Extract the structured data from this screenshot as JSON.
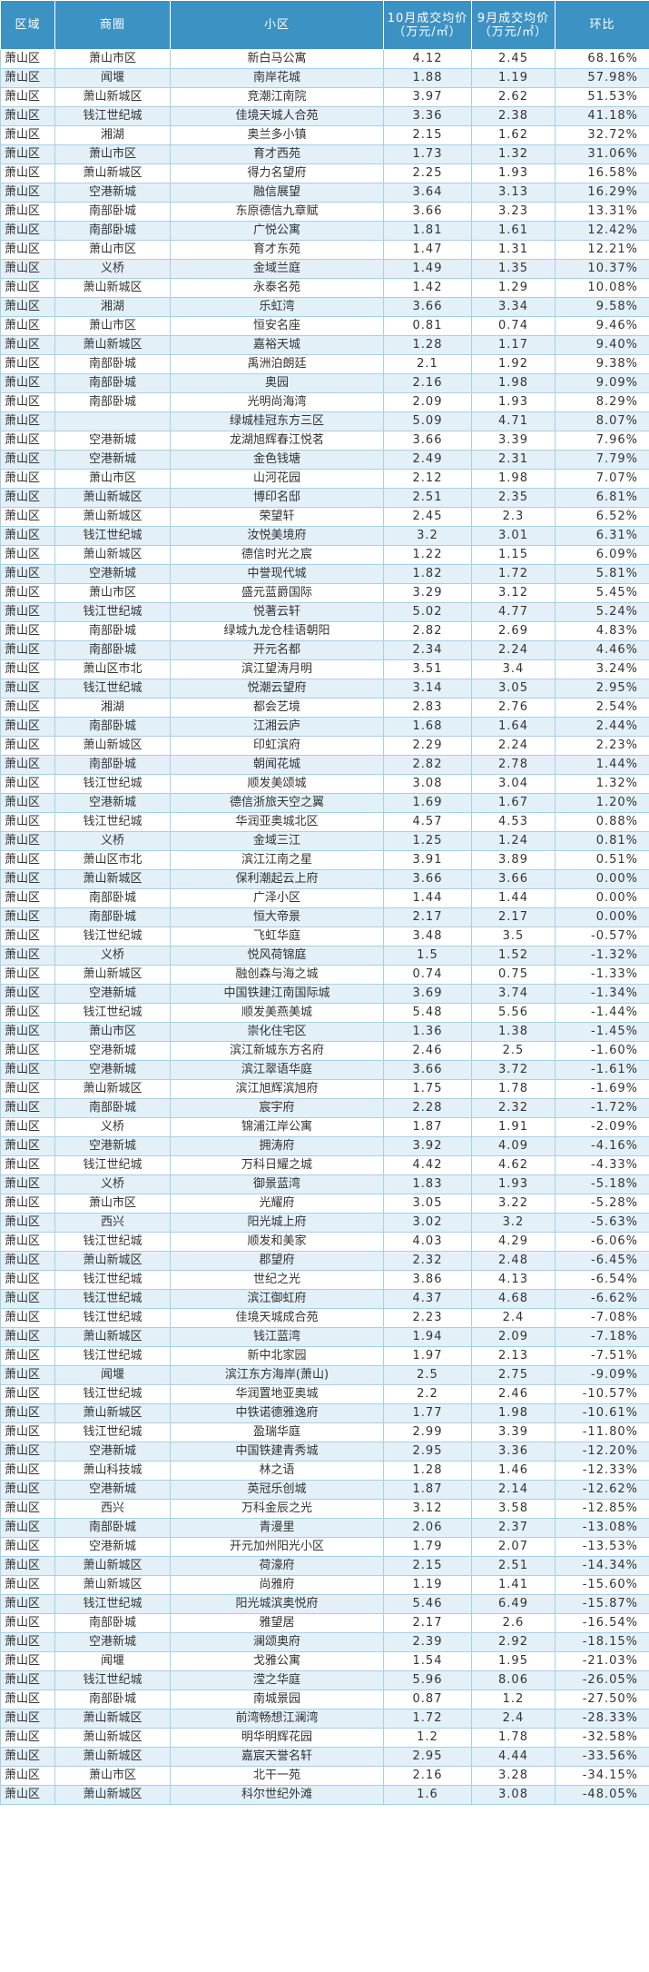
{
  "table": {
    "headers": [
      "区域",
      "商圈",
      "小区",
      "10月成交均价（万元/㎡）",
      "9月成交均价（万元/㎡）",
      "环比"
    ],
    "rows": [
      [
        "萧山区",
        "萧山市区",
        "新白马公寓",
        "4.12",
        "2.45",
        "68.16%"
      ],
      [
        "萧山区",
        "闻堰",
        "南岸花城",
        "1.88",
        "1.19",
        "57.98%"
      ],
      [
        "萧山区",
        "萧山新城区",
        "竞潮江南院",
        "3.97",
        "2.62",
        "51.53%"
      ],
      [
        "萧山区",
        "钱江世纪城",
        "佳境天城人合苑",
        "3.36",
        "2.38",
        "41.18%"
      ],
      [
        "萧山区",
        "湘湖",
        "奥兰多小镇",
        "2.15",
        "1.62",
        "32.72%"
      ],
      [
        "萧山区",
        "萧山市区",
        "育才西苑",
        "1.73",
        "1.32",
        "31.06%"
      ],
      [
        "萧山区",
        "萧山新城区",
        "得力名望府",
        "2.25",
        "1.93",
        "16.58%"
      ],
      [
        "萧山区",
        "空港新城",
        "融信展望",
        "3.64",
        "3.13",
        "16.29%"
      ],
      [
        "萧山区",
        "南部卧城",
        "东原德信九章赋",
        "3.66",
        "3.23",
        "13.31%"
      ],
      [
        "萧山区",
        "南部卧城",
        "广悦公寓",
        "1.81",
        "1.61",
        "12.42%"
      ],
      [
        "萧山区",
        "萧山市区",
        "育才东苑",
        "1.47",
        "1.31",
        "12.21%"
      ],
      [
        "萧山区",
        "义桥",
        "金域兰庭",
        "1.49",
        "1.35",
        "10.37%"
      ],
      [
        "萧山区",
        "萧山新城区",
        "永泰名苑",
        "1.42",
        "1.29",
        "10.08%"
      ],
      [
        "萧山区",
        "湘湖",
        "乐虹湾",
        "3.66",
        "3.34",
        "9.58%"
      ],
      [
        "萧山区",
        "萧山市区",
        "恒安名座",
        "0.81",
        "0.74",
        "9.46%"
      ],
      [
        "萧山区",
        "萧山新城区",
        "嘉裕天城",
        "1.28",
        "1.17",
        "9.40%"
      ],
      [
        "萧山区",
        "南部卧城",
        "禹洲泊朗廷",
        "2.1",
        "1.92",
        "9.38%"
      ],
      [
        "萧山区",
        "南部卧城",
        "奥园",
        "2.16",
        "1.98",
        "9.09%"
      ],
      [
        "萧山区",
        "南部卧城",
        "光明尚海湾",
        "2.09",
        "1.93",
        "8.29%"
      ],
      [
        "萧山区",
        "",
        "绿城桂冠东方三区",
        "5.09",
        "4.71",
        "8.07%"
      ],
      [
        "萧山区",
        "空港新城",
        "龙湖旭辉春江悦茗",
        "3.66",
        "3.39",
        "7.96%"
      ],
      [
        "萧山区",
        "空港新城",
        "金色钱塘",
        "2.49",
        "2.31",
        "7.79%"
      ],
      [
        "萧山区",
        "萧山市区",
        "山河花园",
        "2.12",
        "1.98",
        "7.07%"
      ],
      [
        "萧山区",
        "萧山新城区",
        "博印名邸",
        "2.51",
        "2.35",
        "6.81%"
      ],
      [
        "萧山区",
        "萧山新城区",
        "荣望轩",
        "2.45",
        "2.3",
        "6.52%"
      ],
      [
        "萧山区",
        "钱江世纪城",
        "汝悦美境府",
        "3.2",
        "3.01",
        "6.31%"
      ],
      [
        "萧山区",
        "萧山新城区",
        "德信时光之宸",
        "1.22",
        "1.15",
        "6.09%"
      ],
      [
        "萧山区",
        "空港新城",
        "中誉现代城",
        "1.82",
        "1.72",
        "5.81%"
      ],
      [
        "萧山区",
        "萧山市区",
        "盛元蓝爵国际",
        "3.29",
        "3.12",
        "5.45%"
      ],
      [
        "萧山区",
        "钱江世纪城",
        "悦著云轩",
        "5.02",
        "4.77",
        "5.24%"
      ],
      [
        "萧山区",
        "南部卧城",
        "绿城九龙仓桂语朝阳",
        "2.82",
        "2.69",
        "4.83%"
      ],
      [
        "萧山区",
        "南部卧城",
        "开元名都",
        "2.34",
        "2.24",
        "4.46%"
      ],
      [
        "萧山区",
        "萧山区市北",
        "滨江望涛月明",
        "3.51",
        "3.4",
        "3.24%"
      ],
      [
        "萧山区",
        "钱江世纪城",
        "悦潮云望府",
        "3.14",
        "3.05",
        "2.95%"
      ],
      [
        "萧山区",
        "湘湖",
        "都会艺境",
        "2.83",
        "2.76",
        "2.54%"
      ],
      [
        "萧山区",
        "南部卧城",
        "江湘云庐",
        "1.68",
        "1.64",
        "2.44%"
      ],
      [
        "萧山区",
        "萧山新城区",
        "印虹滨府",
        "2.29",
        "2.24",
        "2.23%"
      ],
      [
        "萧山区",
        "南部卧城",
        "朝闻花城",
        "2.82",
        "2.78",
        "1.44%"
      ],
      [
        "萧山区",
        "钱江世纪城",
        "顺发美颂城",
        "3.08",
        "3.04",
        "1.32%"
      ],
      [
        "萧山区",
        "空港新城",
        "德信浙旅天空之翼",
        "1.69",
        "1.67",
        "1.20%"
      ],
      [
        "萧山区",
        "钱江世纪城",
        "华润亚奥城北区",
        "4.57",
        "4.53",
        "0.88%"
      ],
      [
        "萧山区",
        "义桥",
        "金域三江",
        "1.25",
        "1.24",
        "0.81%"
      ],
      [
        "萧山区",
        "萧山区市北",
        "滨江江南之星",
        "3.91",
        "3.89",
        "0.51%"
      ],
      [
        "萧山区",
        "萧山新城区",
        "保利潮起云上府",
        "3.66",
        "3.66",
        "0.00%"
      ],
      [
        "萧山区",
        "南部卧城",
        "广泽小区",
        "1.44",
        "1.44",
        "0.00%"
      ],
      [
        "萧山区",
        "南部卧城",
        "恒大帝景",
        "2.17",
        "2.17",
        "0.00%"
      ],
      [
        "萧山区",
        "钱江世纪城",
        "飞虹华庭",
        "3.48",
        "3.5",
        "-0.57%"
      ],
      [
        "萧山区",
        "义桥",
        "悦风荷锦庭",
        "1.5",
        "1.52",
        "-1.32%"
      ],
      [
        "萧山区",
        "萧山新城区",
        "融创森与海之城",
        "0.74",
        "0.75",
        "-1.33%"
      ],
      [
        "萧山区",
        "空港新城",
        "中国铁建江南国际城",
        "3.69",
        "3.74",
        "-1.34%"
      ],
      [
        "萧山区",
        "钱江世纪城",
        "顺发美燕美城",
        "5.48",
        "5.56",
        "-1.44%"
      ],
      [
        "萧山区",
        "萧山市区",
        "崇化住宅区",
        "1.36",
        "1.38",
        "-1.45%"
      ],
      [
        "萧山区",
        "空港新城",
        "滨江新城东方名府",
        "2.46",
        "2.5",
        "-1.60%"
      ],
      [
        "萧山区",
        "空港新城",
        "滨江翠语华庭",
        "3.66",
        "3.72",
        "-1.61%"
      ],
      [
        "萧山区",
        "萧山新城区",
        "滨江旭辉滨旭府",
        "1.75",
        "1.78",
        "-1.69%"
      ],
      [
        "萧山区",
        "南部卧城",
        "宸宇府",
        "2.28",
        "2.32",
        "-1.72%"
      ],
      [
        "萧山区",
        "义桥",
        "锦浦江岸公寓",
        "1.87",
        "1.91",
        "-2.09%"
      ],
      [
        "萧山区",
        "空港新城",
        "拥涛府",
        "3.92",
        "4.09",
        "-4.16%"
      ],
      [
        "萧山区",
        "钱江世纪城",
        "万科日耀之城",
        "4.42",
        "4.62",
        "-4.33%"
      ],
      [
        "萧山区",
        "义桥",
        "御景蓝湾",
        "1.83",
        "1.93",
        "-5.18%"
      ],
      [
        "萧山区",
        "萧山市区",
        "光耀府",
        "3.05",
        "3.22",
        "-5.28%"
      ],
      [
        "萧山区",
        "西兴",
        "阳光城上府",
        "3.02",
        "3.2",
        "-5.63%"
      ],
      [
        "萧山区",
        "钱江世纪城",
        "顺发和美家",
        "4.03",
        "4.29",
        "-6.06%"
      ],
      [
        "萧山区",
        "萧山新城区",
        "郡望府",
        "2.32",
        "2.48",
        "-6.45%"
      ],
      [
        "萧山区",
        "钱江世纪城",
        "世纪之光",
        "3.86",
        "4.13",
        "-6.54%"
      ],
      [
        "萧山区",
        "钱江世纪城",
        "滨江御虹府",
        "4.37",
        "4.68",
        "-6.62%"
      ],
      [
        "萧山区",
        "钱江世纪城",
        "佳境天城成合苑",
        "2.23",
        "2.4",
        "-7.08%"
      ],
      [
        "萧山区",
        "萧山新城区",
        "钱江蓝湾",
        "1.94",
        "2.09",
        "-7.18%"
      ],
      [
        "萧山区",
        "钱江世纪城",
        "新中北家园",
        "1.97",
        "2.13",
        "-7.51%"
      ],
      [
        "萧山区",
        "闻堰",
        "滨江东方海岸(萧山)",
        "2.5",
        "2.75",
        "-9.09%"
      ],
      [
        "萧山区",
        "钱江世纪城",
        "华润置地亚奥城",
        "2.2",
        "2.46",
        "-10.57%"
      ],
      [
        "萧山区",
        "萧山新城区",
        "中铁诺德雅逸府",
        "1.77",
        "1.98",
        "-10.61%"
      ],
      [
        "萧山区",
        "钱江世纪城",
        "盈瑞华庭",
        "2.99",
        "3.39",
        "-11.80%"
      ],
      [
        "萧山区",
        "空港新城",
        "中国铁建青秀城",
        "2.95",
        "3.36",
        "-12.20%"
      ],
      [
        "萧山区",
        "萧山科技城",
        "林之语",
        "1.28",
        "1.46",
        "-12.33%"
      ],
      [
        "萧山区",
        "空港新城",
        "英冠乐创城",
        "1.87",
        "2.14",
        "-12.62%"
      ],
      [
        "萧山区",
        "西兴",
        "万科金辰之光",
        "3.12",
        "3.58",
        "-12.85%"
      ],
      [
        "萧山区",
        "南部卧城",
        "青漫里",
        "2.06",
        "2.37",
        "-13.08%"
      ],
      [
        "萧山区",
        "空港新城",
        "开元加州阳光小区",
        "1.79",
        "2.07",
        "-13.53%"
      ],
      [
        "萧山区",
        "萧山新城区",
        "荷濠府",
        "2.15",
        "2.51",
        "-14.34%"
      ],
      [
        "萧山区",
        "萧山新城区",
        "尚雅府",
        "1.19",
        "1.41",
        "-15.60%"
      ],
      [
        "萧山区",
        "钱江世纪城",
        "阳光城滨奥悦府",
        "5.46",
        "6.49",
        "-15.87%"
      ],
      [
        "萧山区",
        "南部卧城",
        "雅望居",
        "2.17",
        "2.6",
        "-16.54%"
      ],
      [
        "萧山区",
        "空港新城",
        "澜颂奥府",
        "2.39",
        "2.92",
        "-18.15%"
      ],
      [
        "萧山区",
        "闻堰",
        "戈雅公寓",
        "1.54",
        "1.95",
        "-21.03%"
      ],
      [
        "萧山区",
        "钱江世纪城",
        "滢之华庭",
        "5.96",
        "8.06",
        "-26.05%"
      ],
      [
        "萧山区",
        "南部卧城",
        "南城景园",
        "0.87",
        "1.2",
        "-27.50%"
      ],
      [
        "萧山区",
        "萧山新城区",
        "前湾畅想江澜湾",
        "1.72",
        "2.4",
        "-28.33%"
      ],
      [
        "萧山区",
        "萧山新城区",
        "明华明辉花园",
        "1.2",
        "1.78",
        "-32.58%"
      ],
      [
        "萧山区",
        "萧山新城区",
        "嘉宸天誉名轩",
        "2.95",
        "4.44",
        "-33.56%"
      ],
      [
        "萧山区",
        "萧山市区",
        "北干一苑",
        "2.16",
        "3.28",
        "-34.15%"
      ],
      [
        "萧山区",
        "萧山新城区",
        "科尔世纪外滩",
        "1.6",
        "3.08",
        "-48.05%"
      ]
    ]
  }
}
